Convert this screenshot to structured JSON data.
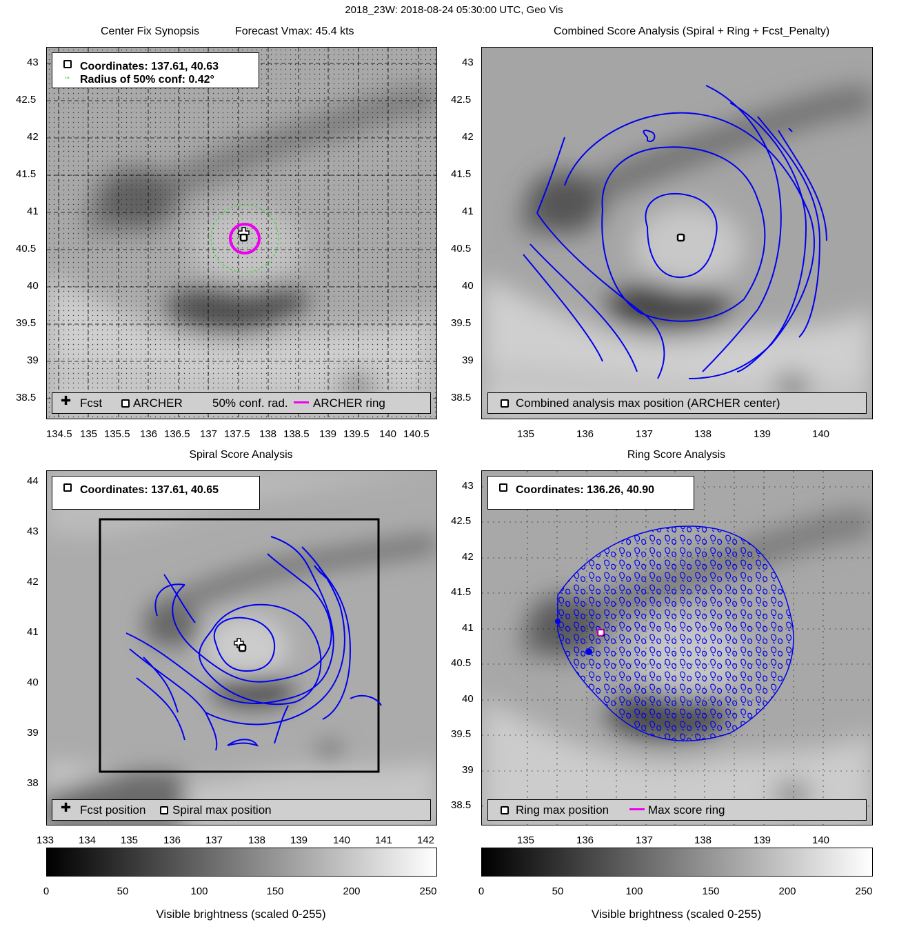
{
  "suptitle": "2018_23W: 2018-08-24 05:30:00 UTC, Geo Vis",
  "panels": {
    "center_fix": {
      "title_left": "Center Fix Synopsis",
      "title_right": "Forecast Vmax: 45.4 kts",
      "info_coords": "Coordinates: 137.61, 40.63",
      "info_radius": "Radius of 50% conf: 0.42°",
      "legend": {
        "fcst": "Fcst",
        "archer": "ARCHER",
        "conf": "50% conf. rad.",
        "ring": "ARCHER ring"
      },
      "xticks": [
        "134.5",
        "135",
        "135.5",
        "136",
        "136.5",
        "137",
        "137.5",
        "138",
        "138.5",
        "139",
        "139.5",
        "140",
        "140.5"
      ],
      "yticks": [
        "43",
        "42.5",
        "42",
        "41.5",
        "41",
        "40.5",
        "40",
        "39.5",
        "39",
        "38.5"
      ]
    },
    "combined": {
      "title": "Combined Score Analysis (Spiral + Ring + Fcst_Penalty)",
      "legend": "Combined analysis max position (ARCHER center)",
      "xticks": [
        "135",
        "136",
        "137",
        "138",
        "139",
        "140"
      ],
      "yticks": [
        "43",
        "42.5",
        "42",
        "41.5",
        "41",
        "40.5",
        "40",
        "39.5",
        "39",
        "38.5"
      ]
    },
    "spiral": {
      "title": "Spiral Score Analysis",
      "info_coords": "Coordinates: 137.61, 40.65",
      "legend": {
        "fcst": "Fcst position",
        "max": "Spiral max position"
      },
      "xticks": [
        "133",
        "134",
        "135",
        "136",
        "137",
        "138",
        "139",
        "140",
        "141",
        "142"
      ],
      "yticks": [
        "44",
        "43",
        "42",
        "41",
        "40",
        "39",
        "38"
      ]
    },
    "ring": {
      "title": "Ring Score Analysis",
      "info_coords": "Coordinates: 136.26, 40.90",
      "legend": {
        "max": "Ring max position",
        "ring": "Max score ring"
      },
      "xticks": [
        "135",
        "136",
        "137",
        "138",
        "139",
        "140"
      ],
      "yticks": [
        "43",
        "42.5",
        "42",
        "41.5",
        "41",
        "40.5",
        "40",
        "39.5",
        "39",
        "38.5"
      ]
    }
  },
  "colorbar": {
    "ticks": [
      "0",
      "50",
      "100",
      "150",
      "200",
      "250"
    ],
    "label": "Visible brightness (scaled 0-255)"
  },
  "chart_data": [
    {
      "type": "scatter",
      "title": "Center Fix Synopsis",
      "xlim": [
        134.3,
        140.8
      ],
      "ylim": [
        38.3,
        43.2
      ],
      "points": [
        {
          "series": "Fcst",
          "x": 137.55,
          "y": 40.7
        },
        {
          "series": "ARCHER",
          "x": 137.61,
          "y": 40.63
        }
      ],
      "archer_ring_center": [
        137.61,
        40.63
      ],
      "conf_radius_deg": 0.42
    },
    {
      "type": "scatter",
      "title": "Combined Score Analysis (Spiral + Ring + Fcst_Penalty)",
      "xlim": [
        134.3,
        140.8
      ],
      "ylim": [
        38.3,
        43.2
      ],
      "points": [
        {
          "series": "Combined analysis max position (ARCHER center)",
          "x": 137.61,
          "y": 40.63
        }
      ]
    },
    {
      "type": "scatter",
      "title": "Spiral Score Analysis",
      "xlim": [
        133,
        142.2
      ],
      "ylim": [
        37.2,
        44.2
      ],
      "points": [
        {
          "series": "Fcst position",
          "x": 137.55,
          "y": 40.7
        },
        {
          "series": "Spiral max position",
          "x": 137.61,
          "y": 40.65
        }
      ],
      "search_box": {
        "x": [
          134.3,
          140.9
        ],
        "y": [
          38.25,
          43.25
        ]
      }
    },
    {
      "type": "scatter",
      "title": "Ring Score Analysis",
      "xlim": [
        134.3,
        140.8
      ],
      "ylim": [
        38.3,
        43.2
      ],
      "points": [
        {
          "series": "Ring max position",
          "x": 136.26,
          "y": 40.9
        }
      ]
    }
  ]
}
